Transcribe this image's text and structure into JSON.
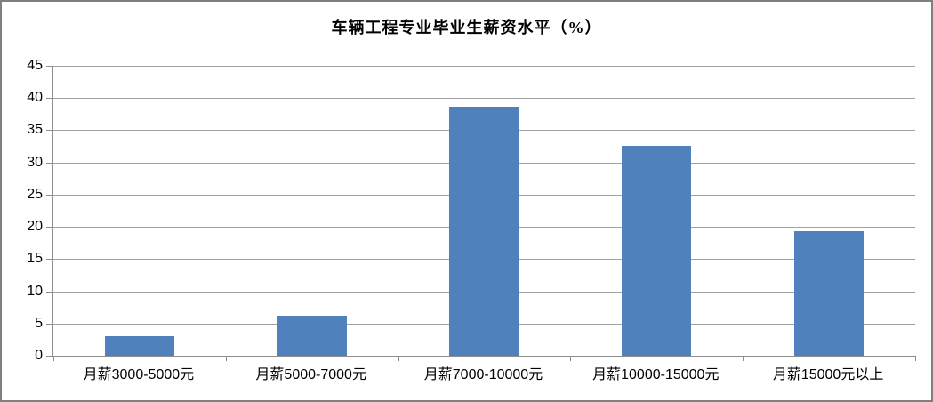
{
  "chart_data": {
    "type": "bar",
    "title": "车辆工程专业毕业生薪资水平（%）",
    "categories": [
      "月薪3000-5000元",
      "月薪5000-7000元",
      "月薪7000-10000元",
      "月薪10000-15000元",
      "月薪15000元以上"
    ],
    "values": [
      3.1,
      6.2,
      38.7,
      32.6,
      19.3
    ],
    "xlabel": "",
    "ylabel": "",
    "ylim": [
      0,
      45
    ],
    "ytick_step": 5,
    "yticks": [
      "45",
      "40",
      "35",
      "30",
      "25",
      "20",
      "15",
      "10",
      "5",
      "0"
    ],
    "grid": true,
    "legend": false
  },
  "colors": {
    "bar": "#4f81bd",
    "gridline": "#a3a3a3",
    "axis": "#8e8e8e",
    "frame_border": "#7f7f7f",
    "background": "#ffffff",
    "text": "#000000"
  }
}
